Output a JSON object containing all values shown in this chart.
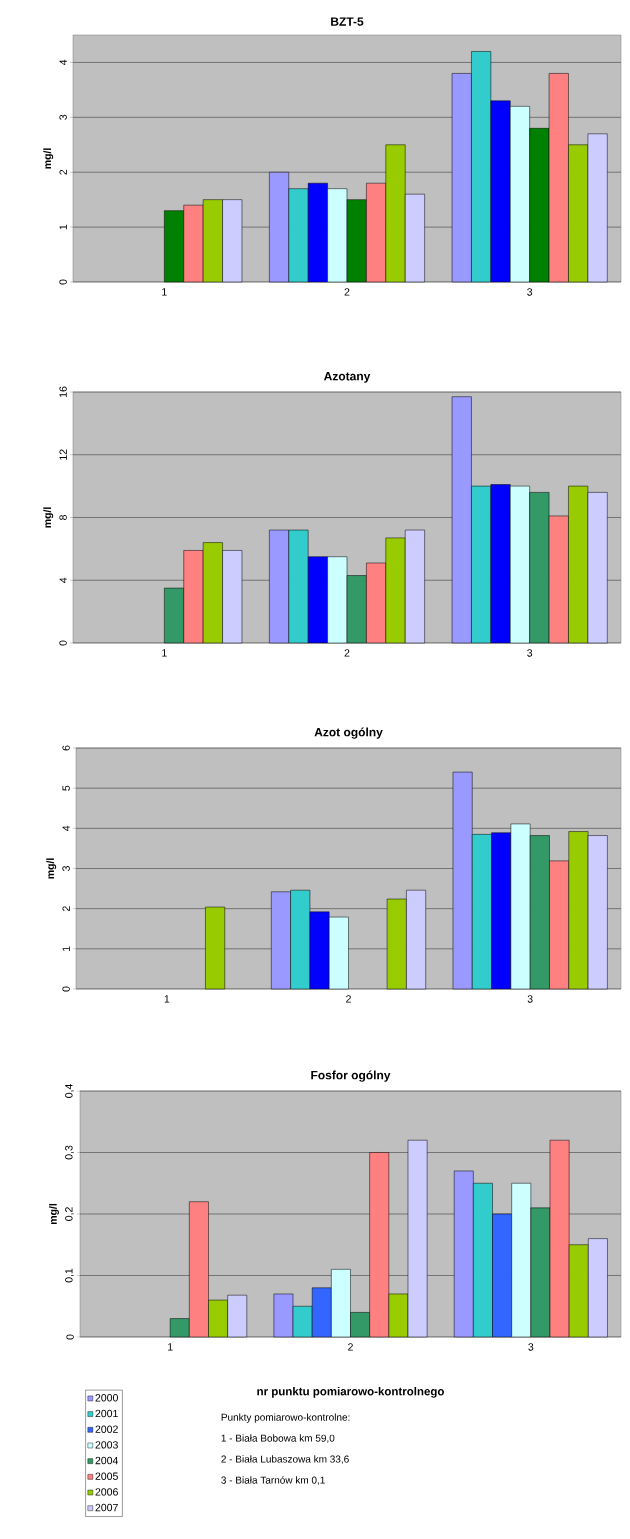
{
  "chart_data": [
    {
      "type": "bar",
      "title": "BZT-5",
      "ylabel": "mg/l",
      "categories": [
        "1",
        "2",
        "3"
      ],
      "ylim": [
        0,
        4.5
      ],
      "yticks": [
        0,
        1,
        2,
        3,
        4
      ],
      "grid": "y",
      "series": [
        {
          "color": "#9999ff",
          "values": [
            null,
            2.0,
            3.8
          ]
        },
        {
          "color": "#33cccc",
          "values": [
            null,
            1.7,
            4.2
          ]
        },
        {
          "color": "#0000ff",
          "values": [
            null,
            1.8,
            3.3
          ]
        },
        {
          "color": "#ccffff",
          "values": [
            null,
            1.7,
            3.2
          ]
        },
        {
          "color": "#008000",
          "values": [
            1.3,
            1.5,
            2.8
          ]
        },
        {
          "color": "#ff8080",
          "values": [
            1.4,
            1.8,
            3.8
          ]
        },
        {
          "color": "#99cc00",
          "values": [
            1.5,
            2.5,
            2.5
          ]
        },
        {
          "color": "#ccccff",
          "values": [
            1.5,
            1.6,
            2.7
          ]
        }
      ]
    },
    {
      "type": "bar",
      "title": "Azotany",
      "ylabel": "mg/l",
      "categories": [
        "1",
        "2",
        "3"
      ],
      "ylim": [
        0,
        16
      ],
      "yticks": [
        0,
        4,
        8,
        12,
        16
      ],
      "grid": "y",
      "series": [
        {
          "color": "#9999ff",
          "values": [
            null,
            7.2,
            15.7
          ]
        },
        {
          "color": "#33cccc",
          "values": [
            null,
            7.2,
            10.0
          ]
        },
        {
          "color": "#0000ff",
          "values": [
            null,
            5.5,
            10.1
          ]
        },
        {
          "color": "#ccffff",
          "values": [
            null,
            5.5,
            10.0
          ]
        },
        {
          "color": "#339966",
          "values": [
            3.5,
            4.3,
            9.6
          ]
        },
        {
          "color": "#ff8080",
          "values": [
            5.9,
            5.1,
            8.1
          ]
        },
        {
          "color": "#99cc00",
          "values": [
            6.4,
            6.7,
            10.0
          ]
        },
        {
          "color": "#ccccff",
          "values": [
            5.9,
            7.2,
            9.6
          ]
        }
      ]
    },
    {
      "type": "bar",
      "title": "Azot ogólny",
      "ylabel": "mg/l",
      "categories": [
        "1",
        "2",
        "3"
      ],
      "ylim": [
        0,
        6
      ],
      "yticks": [
        0,
        1,
        2,
        3,
        4,
        5,
        6
      ],
      "grid": "y",
      "series": [
        {
          "color": "#9999ff",
          "values": [
            null,
            2.42,
            5.4
          ]
        },
        {
          "color": "#33cccc",
          "values": [
            null,
            2.46,
            3.85
          ]
        },
        {
          "color": "#0000ff",
          "values": [
            null,
            1.92,
            3.89
          ]
        },
        {
          "color": "#ccffff",
          "values": [
            null,
            1.79,
            4.11
          ]
        },
        {
          "color": "#339966",
          "values": [
            null,
            null,
            3.82
          ]
        },
        {
          "color": "#ff8080",
          "values": [
            null,
            null,
            3.19
          ]
        },
        {
          "color": "#99cc00",
          "values": [
            2.04,
            2.24,
            3.92
          ]
        },
        {
          "color": "#ccccff",
          "values": [
            null,
            2.46,
            3.82
          ]
        }
      ]
    },
    {
      "type": "bar",
      "title": "Fosfor ogólny",
      "ylabel": "mg/l",
      "xlabel": "nr punktu pomiarowo-kontrolnego",
      "categories": [
        "1",
        "2",
        "3"
      ],
      "ylim": [
        0,
        0.4
      ],
      "yticks": [
        0,
        {
          "value": 0.1,
          "label": "0,1"
        },
        {
          "value": 0.2,
          "label": "0,2"
        },
        {
          "value": 0.3,
          "label": "0,3"
        },
        {
          "value": 0.4,
          "label": "0,4"
        }
      ],
      "grid": "y",
      "legend": "bottom left",
      "annotations": [
        "Punkty pomiarowo-kontrolne:",
        "1 - Biała Bobowa km 59,0",
        "2 - Biała Lubaszowa km 33,6",
        "3 - Biała Tarnów km 0,1"
      ],
      "series": [
        {
          "name": "2000",
          "color": "#9999ff",
          "values": [
            null,
            0.07,
            0.27
          ]
        },
        {
          "name": "2001",
          "color": "#33cccc",
          "values": [
            null,
            0.05,
            0.25
          ]
        },
        {
          "name": "2002",
          "color": "#3366ff",
          "values": [
            null,
            0.08,
            0.2
          ]
        },
        {
          "name": "2003",
          "color": "#ccffff",
          "values": [
            null,
            0.11,
            0.25
          ]
        },
        {
          "name": "2004",
          "color": "#339966",
          "values": [
            0.03,
            0.04,
            0.21
          ]
        },
        {
          "name": "2005",
          "color": "#ff8080",
          "values": [
            0.22,
            0.3,
            0.32
          ]
        },
        {
          "name": "2006",
          "color": "#99cc00",
          "values": [
            0.06,
            0.07,
            0.15
          ]
        },
        {
          "name": "2007",
          "color": "#ccccff",
          "values": [
            0.068,
            0.32,
            0.16
          ]
        }
      ]
    }
  ]
}
